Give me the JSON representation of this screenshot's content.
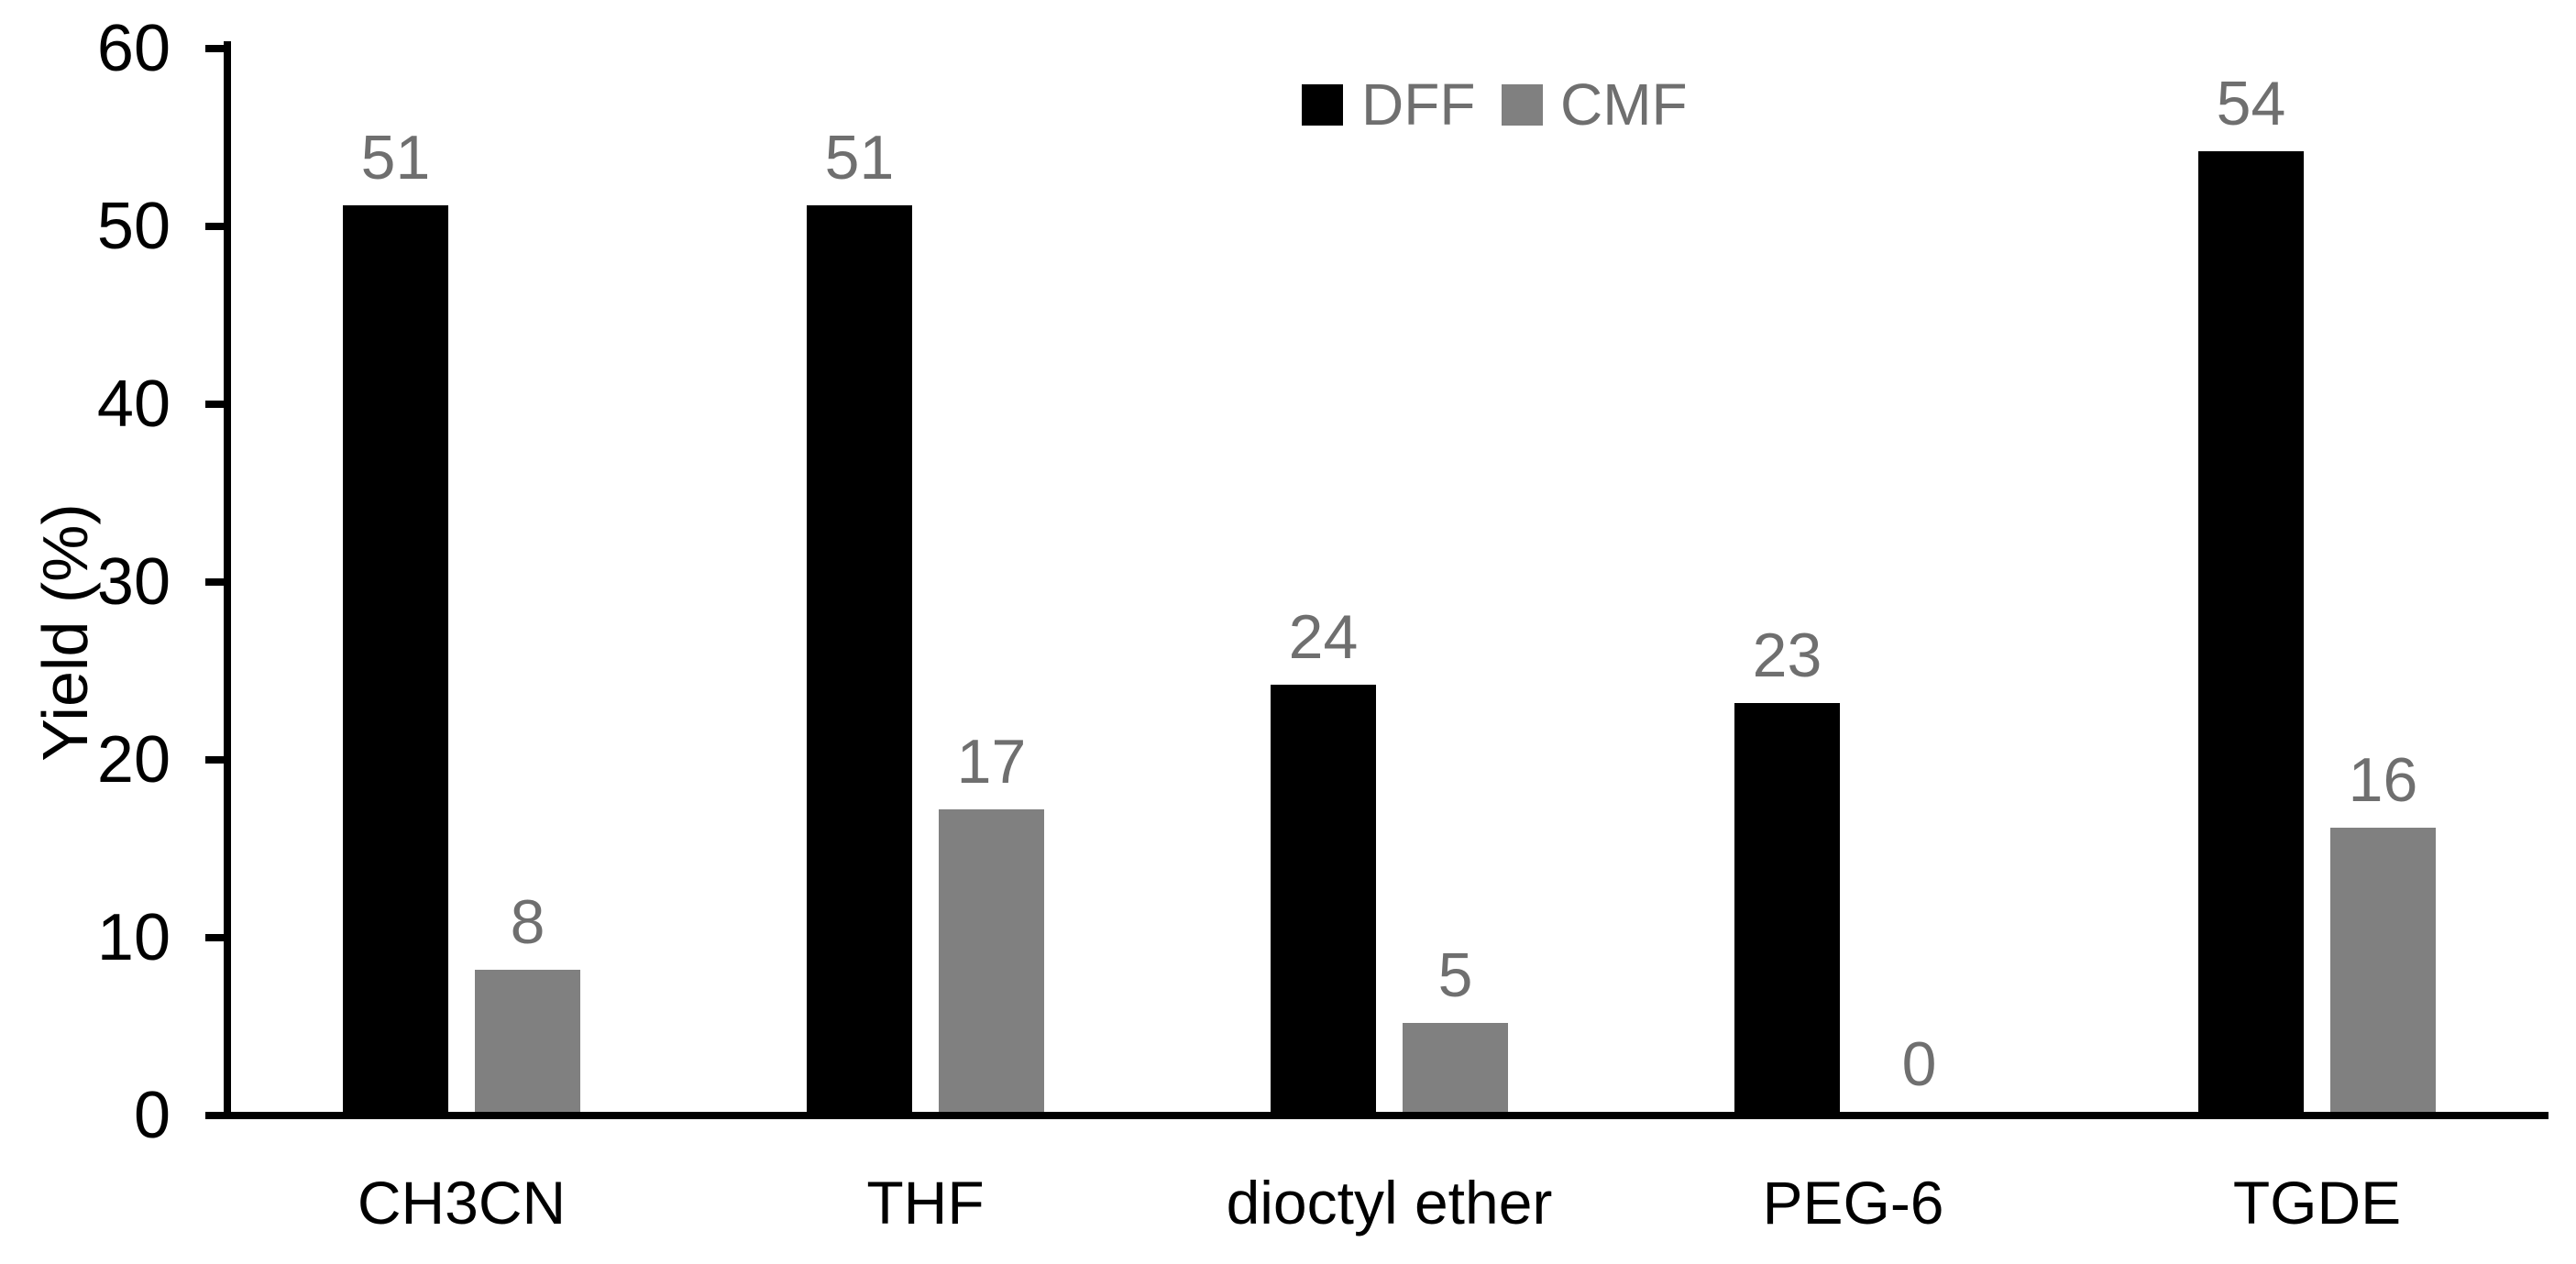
{
  "chart_data": {
    "type": "bar",
    "title": "",
    "categories": [
      "CH3CN",
      "THF",
      "dioctyl ether",
      "PEG-6",
      "TGDE"
    ],
    "series": [
      {
        "name": "DFF",
        "color": "#000000",
        "values": [
          51,
          51,
          24,
          23,
          54
        ]
      },
      {
        "name": "CMF",
        "color": "#808080",
        "values": [
          8,
          17,
          5,
          0,
          16
        ]
      }
    ],
    "value_labels": [
      [
        "51",
        "51",
        "24",
        "23",
        "54"
      ],
      [
        "8",
        "17",
        "5",
        "0",
        "16"
      ]
    ],
    "xlabel": "",
    "ylabel": "Yield (%)",
    "ylim": [
      0,
      60
    ],
    "yticks": [
      "0",
      "10",
      "20",
      "30",
      "40",
      "50",
      "60"
    ],
    "grid": false,
    "legend_position": "top-center",
    "colors": {
      "axis": "#000000",
      "tick_label": "#000000",
      "category_label": "#000000",
      "value_label": "#6f6f6f",
      "legend_text": "#6f6f6f",
      "dff_bar": "#000000",
      "cmf_bar": "#808080",
      "background": "#ffffff"
    }
  }
}
